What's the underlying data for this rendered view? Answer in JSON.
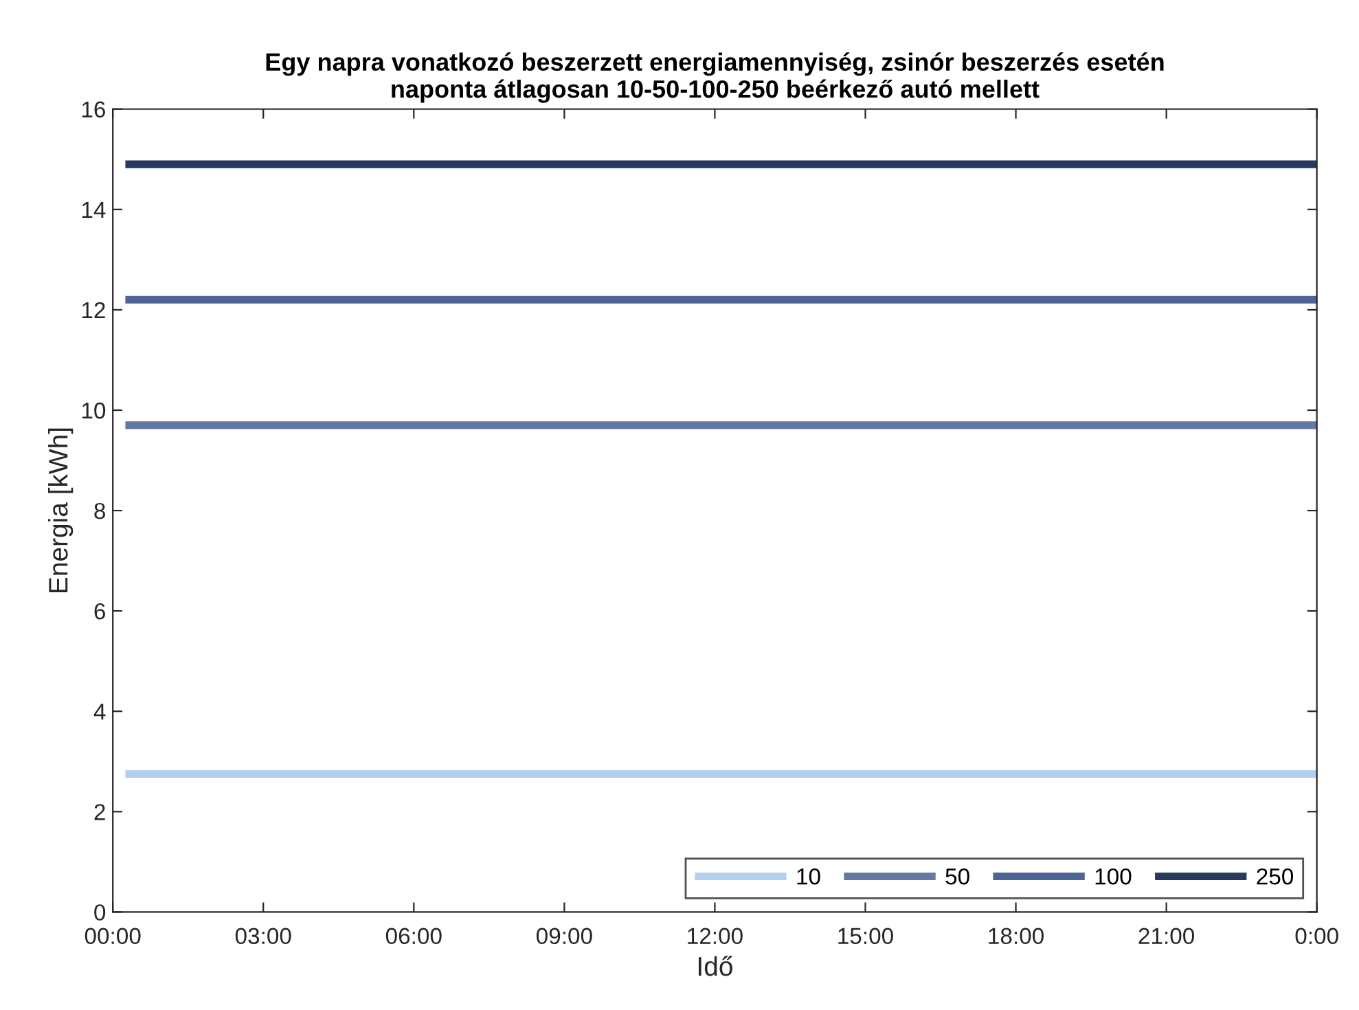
{
  "chart_data": {
    "type": "line",
    "title": "Egy napra vonatkozó beszerzett energiamennyiség, zsinór beszerzés esetén\nnaponta átlagosan 10-50-100-250 beérkező autó mellett",
    "xlabel": "Idő",
    "ylabel": "Energia [kWh]",
    "xlim": [
      0,
      24
    ],
    "xticks": [
      {
        "value": 0,
        "label": "00:00"
      },
      {
        "value": 3,
        "label": "03:00"
      },
      {
        "value": 6,
        "label": "06:00"
      },
      {
        "value": 9,
        "label": "09:00"
      },
      {
        "value": 12,
        "label": "12:00"
      },
      {
        "value": 15,
        "label": "15:00"
      },
      {
        "value": 18,
        "label": "18:00"
      },
      {
        "value": 21,
        "label": "21:00"
      },
      {
        "value": 24,
        "label": "0:00"
      }
    ],
    "ylim": [
      0,
      16
    ],
    "yticks": [
      0,
      2,
      4,
      6,
      8,
      10,
      12,
      14,
      16
    ],
    "grid": false,
    "legend": "bottom right",
    "marker": "none",
    "line_style": "solid",
    "x": [
      0.25,
      24
    ],
    "series": [
      {
        "name": "10",
        "color": "#b3cff0",
        "values": [
          2.75,
          2.75
        ]
      },
      {
        "name": "50",
        "color": "#6379a3",
        "values": [
          9.7,
          9.7
        ]
      },
      {
        "name": "100",
        "color": "#4d6494",
        "values": [
          12.2,
          12.2
        ]
      },
      {
        "name": "250",
        "color": "#263a5e",
        "values": [
          14.9,
          14.9
        ]
      }
    ]
  }
}
